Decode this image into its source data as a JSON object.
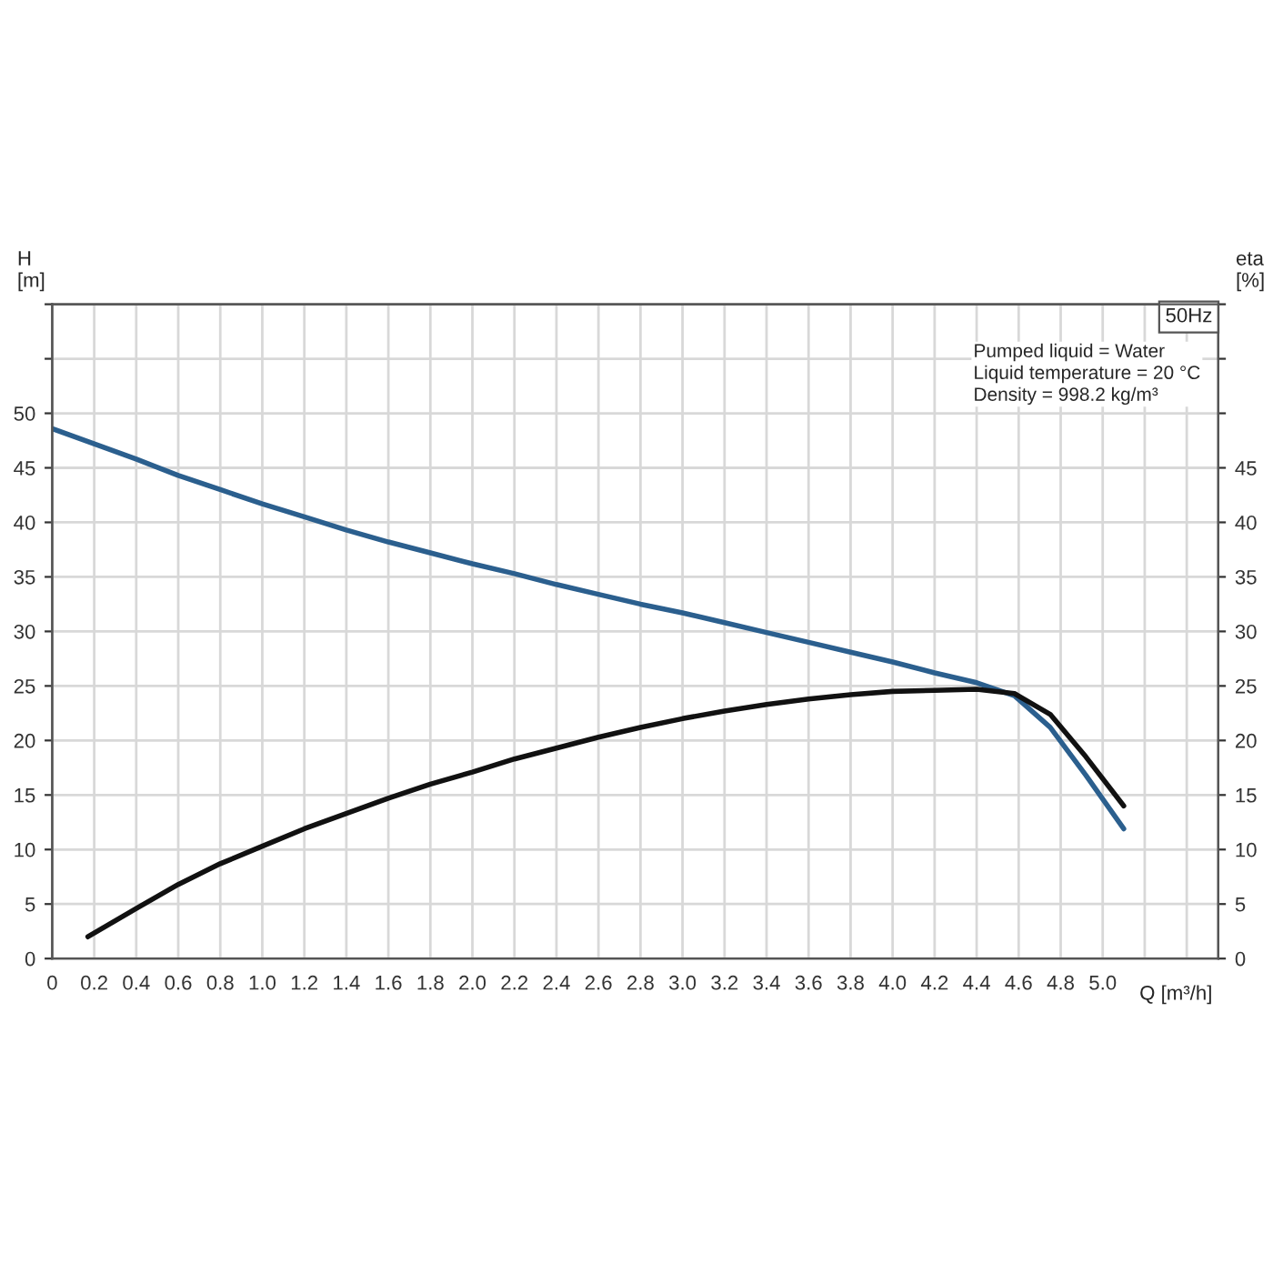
{
  "chart_data": {
    "type": "line",
    "title": "50Hz",
    "xlabel": "Q [m³/h]",
    "ylabel": "H\n[m]",
    "y2label": "eta\n[%]",
    "annotations": [
      "Pumped liquid = Water\nLiquid temperature = 20 °C\nDensity = 998.2 kg/m³"
    ],
    "xlim": [
      0,
      5.55
    ],
    "xticks": [
      {
        "value": 0,
        "label": "0"
      },
      0.2,
      0.4,
      0.6,
      0.8,
      {
        "value": 1,
        "label": "1.0"
      },
      1.2,
      1.4,
      1.6,
      1.8,
      {
        "value": 2,
        "label": "2.0"
      },
      2.2,
      2.4,
      2.6,
      2.8,
      {
        "value": 3,
        "label": "3.0"
      },
      3.2,
      3.4,
      3.6,
      3.8,
      {
        "value": 4,
        "label": "4.0"
      },
      4.2,
      4.4,
      4.6,
      4.8,
      {
        "value": 5,
        "label": "5.0"
      },
      {
        "value": 5.2,
        "label": null
      },
      {
        "value": 5.4,
        "label": null
      }
    ],
    "ylim": [
      0,
      60
    ],
    "yticks": [
      0,
      5,
      10,
      15,
      20,
      25,
      30,
      35,
      40,
      45,
      50,
      {
        "value": 55,
        "label": null
      },
      {
        "value": 60,
        "label": null
      }
    ],
    "y2lim": [
      0,
      60
    ],
    "y2ticks": [
      0,
      5,
      10,
      15,
      20,
      25,
      30,
      35,
      40,
      45,
      {
        "value": 50,
        "label": null
      },
      {
        "value": 55,
        "label": null
      },
      {
        "value": 60,
        "label": null
      }
    ],
    "grid": true,
    "marker": "none",
    "line_style": "solid",
    "series": [
      {
        "color": "#2b5f8e",
        "x": [
          0,
          0.2,
          0.4,
          0.6,
          0.8,
          1.0,
          1.2,
          1.4,
          1.6,
          1.8,
          2.0,
          2.2,
          2.4,
          2.6,
          2.8,
          3.0,
          3.2,
          3.4,
          3.6,
          3.8,
          4.0,
          4.2,
          4.4,
          4.58,
          4.75,
          4.92,
          5.1
        ],
        "values": [
          48.6,
          47.2,
          45.8,
          44.3,
          43.0,
          41.7,
          40.5,
          39.3,
          38.2,
          37.2,
          36.2,
          35.3,
          34.3,
          33.4,
          32.5,
          31.7,
          30.8,
          29.9,
          29.0,
          28.1,
          27.2,
          26.2,
          25.3,
          24.1,
          21.2,
          16.8,
          11.9
        ]
      },
      {
        "color": "#111111",
        "axis": "y2",
        "x": [
          0.17,
          0.4,
          0.6,
          0.8,
          1.0,
          1.2,
          1.4,
          1.6,
          1.8,
          2.0,
          2.2,
          2.4,
          2.6,
          2.8,
          3.0,
          3.2,
          3.4,
          3.6,
          3.8,
          4.0,
          4.2,
          4.4,
          4.58,
          4.75,
          4.92,
          5.1
        ],
        "values": [
          2.0,
          4.6,
          6.8,
          8.7,
          10.3,
          11.9,
          13.3,
          14.7,
          16.0,
          17.1,
          18.3,
          19.3,
          20.3,
          21.2,
          22.0,
          22.7,
          23.3,
          23.8,
          24.2,
          24.5,
          24.6,
          24.7,
          24.3,
          22.4,
          18.5,
          14.0
        ]
      }
    ]
  }
}
